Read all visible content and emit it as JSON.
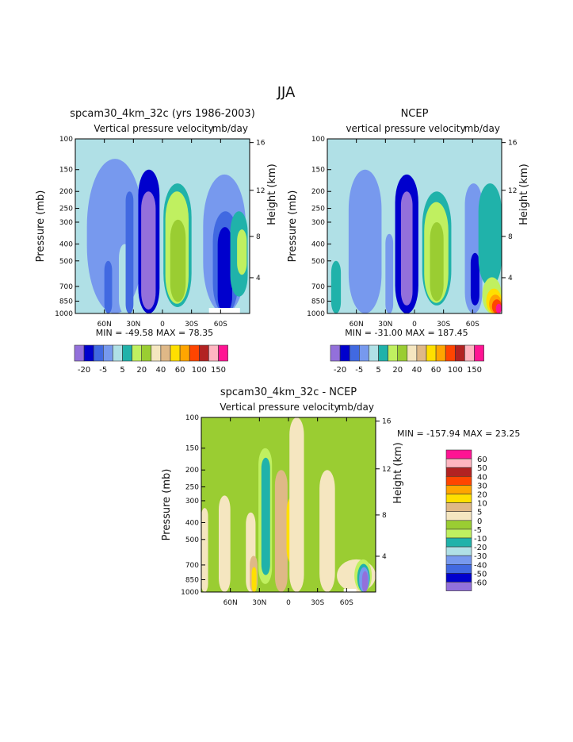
{
  "main_title": "JJA",
  "palette": [
    "#9370db",
    "#0000cd",
    "#4169e1",
    "#7799ee",
    "#b0e0e6",
    "#20b2aa",
    "#c0f060",
    "#9acd32",
    "#f5e6c0",
    "#dfb887",
    "#ffdf00",
    "#ffa500",
    "#ff4500",
    "#b22222",
    "#ffb6c1",
    "#ff1493"
  ],
  "chart_data": [
    {
      "type": "heatmap",
      "title": "spcam30_4km_32c (yrs 1986-2003)",
      "subtitle_left": "Vertical pressure velocity",
      "subtitle_right": "mb/day",
      "ylabel": "Pressure (mb)",
      "ylabel_right": "Height (km)",
      "xlim": [
        90,
        -90
      ],
      "ylim": [
        100,
        1000
      ],
      "x_ticks": [
        {
          "v": 60,
          "label": "60N"
        },
        {
          "v": 30,
          "label": "30N"
        },
        {
          "v": 0,
          "label": "0"
        },
        {
          "v": -30,
          "label": "30S"
        },
        {
          "v": -60,
          "label": "60S"
        }
      ],
      "y_ticks": [
        "100",
        "150",
        "200",
        "250",
        "300",
        "400",
        "500",
        "700",
        "850",
        "1000"
      ],
      "height_ticks": [
        {
          "km": "16",
          "p": 105
        },
        {
          "km": "12",
          "p": 197
        },
        {
          "km": "8",
          "p": 362
        },
        {
          "km": "4",
          "p": 624
        }
      ],
      "stats": "MIN = -49.58   MAX =  78.35",
      "background_level": 4,
      "features": [
        {
          "level": 3,
          "lat": [
            78,
            20
          ],
          "p": [
            130,
            1000
          ]
        },
        {
          "level": 4,
          "lat": [
            45,
            33
          ],
          "p": [
            400,
            1000
          ]
        },
        {
          "level": 2,
          "lat": [
            60,
            52
          ],
          "p": [
            500,
            1000
          ]
        },
        {
          "level": 2,
          "lat": [
            38,
            30
          ],
          "p": [
            200,
            1000
          ]
        },
        {
          "level": 1,
          "lat": [
            25,
            3
          ],
          "p": [
            150,
            1000
          ]
        },
        {
          "level": 0,
          "lat": [
            22,
            7
          ],
          "p": [
            200,
            950
          ]
        },
        {
          "level": 5,
          "lat": [
            -1,
            -30
          ],
          "p": [
            180,
            920
          ]
        },
        {
          "level": 6,
          "lat": [
            -3,
            -27
          ],
          "p": [
            200,
            880
          ]
        },
        {
          "level": 7,
          "lat": [
            -8,
            -24
          ],
          "p": [
            290,
            860
          ]
        },
        {
          "level": 3,
          "lat": [
            -42,
            -86
          ],
          "p": [
            160,
            1000
          ]
        },
        {
          "level": 2,
          "lat": [
            -52,
            -78
          ],
          "p": [
            260,
            1000
          ]
        },
        {
          "level": 1,
          "lat": [
            -57,
            -72
          ],
          "p": [
            320,
            1000
          ]
        },
        {
          "level": 5,
          "lat": [
            -70,
            -88
          ],
          "p": [
            260,
            800
          ]
        },
        {
          "level": 6,
          "lat": [
            -77,
            -87
          ],
          "p": [
            330,
            600
          ]
        }
      ],
      "missing": [
        {
          "lat": [
            -48,
            -80
          ],
          "p": [
            930,
            1000
          ]
        }
      ],
      "colorbar": {
        "orientation": "horizontal",
        "labels": [
          "-20",
          "-5",
          "5",
          "20",
          "40",
          "60",
          "100",
          "150"
        ]
      }
    },
    {
      "type": "heatmap",
      "title": "NCEP",
      "subtitle_left": "vertical pressure velocity",
      "subtitle_right": "mb/day",
      "ylabel": "Pressure (mb)",
      "ylabel_right": "Height (km)",
      "xlim": [
        90,
        -90
      ],
      "ylim": [
        100,
        1000
      ],
      "x_ticks": [
        {
          "v": 60,
          "label": "60N"
        },
        {
          "v": 30,
          "label": "30N"
        },
        {
          "v": 0,
          "label": "0"
        },
        {
          "v": -30,
          "label": "30S"
        },
        {
          "v": -60,
          "label": "60S"
        }
      ],
      "y_ticks": [
        "100",
        "150",
        "200",
        "250",
        "300",
        "400",
        "500",
        "700",
        "850",
        "1000"
      ],
      "height_ticks": [
        {
          "km": "16",
          "p": 105
        },
        {
          "km": "12",
          "p": 197
        },
        {
          "km": "8",
          "p": 362
        },
        {
          "km": "4",
          "p": 624
        }
      ],
      "stats": "MIN = -31.00   MAX = 187.45",
      "background_level": 4,
      "features": [
        {
          "level": 3,
          "lat": [
            68,
            34
          ],
          "p": [
            150,
            1000
          ]
        },
        {
          "level": 5,
          "lat": [
            86,
            76
          ],
          "p": [
            500,
            1000
          ]
        },
        {
          "level": 3,
          "lat": [
            30,
            22
          ],
          "p": [
            350,
            1000
          ]
        },
        {
          "level": 1,
          "lat": [
            20,
            -4
          ],
          "p": [
            160,
            1000
          ]
        },
        {
          "level": 0,
          "lat": [
            14,
            2
          ],
          "p": [
            200,
            900
          ]
        },
        {
          "level": 5,
          "lat": [
            -8,
            -38
          ],
          "p": [
            200,
            900
          ]
        },
        {
          "level": 6,
          "lat": [
            -10,
            -35
          ],
          "p": [
            230,
            870
          ]
        },
        {
          "level": 7,
          "lat": [
            -16,
            -30
          ],
          "p": [
            300,
            850
          ]
        },
        {
          "level": 3,
          "lat": [
            -52,
            -70
          ],
          "p": [
            180,
            1000
          ]
        },
        {
          "level": 1,
          "lat": [
            -58,
            -67
          ],
          "p": [
            450,
            900
          ]
        },
        {
          "level": 5,
          "lat": [
            -66,
            -90
          ],
          "p": [
            180,
            700
          ]
        },
        {
          "level": 6,
          "lat": [
            -70,
            -90
          ],
          "p": [
            620,
            1000
          ]
        },
        {
          "level": 10,
          "lat": [
            -74,
            -90
          ],
          "p": [
            720,
            1000
          ]
        },
        {
          "level": 11,
          "lat": [
            -77,
            -90
          ],
          "p": [
            780,
            1000
          ]
        },
        {
          "level": 12,
          "lat": [
            -80,
            -90
          ],
          "p": [
            830,
            1000
          ]
        },
        {
          "level": 15,
          "lat": [
            -84,
            -90
          ],
          "p": [
            880,
            1000
          ]
        }
      ],
      "missing": [],
      "colorbar": {
        "orientation": "horizontal",
        "labels": [
          "-20",
          "-5",
          "5",
          "20",
          "40",
          "60",
          "100",
          "150"
        ]
      }
    },
    {
      "type": "heatmap",
      "title": "spcam30_4km_32c - NCEP",
      "subtitle_left": "Vertical pressure velocity",
      "subtitle_right": "mb/day",
      "ylabel": "Pressure (mb)",
      "ylabel_right": "Height (km)",
      "xlim": [
        90,
        -90
      ],
      "ylim": [
        100,
        1000
      ],
      "x_ticks": [
        {
          "v": 60,
          "label": "60N"
        },
        {
          "v": 30,
          "label": "30N"
        },
        {
          "v": 0,
          "label": "0"
        },
        {
          "v": -30,
          "label": "30S"
        },
        {
          "v": -60,
          "label": "60S"
        }
      ],
      "y_ticks": [
        "100",
        "150",
        "200",
        "250",
        "300",
        "400",
        "500",
        "700",
        "850",
        "1000"
      ],
      "height_ticks": [
        {
          "km": "16",
          "p": 105
        },
        {
          "km": "12",
          "p": 197
        },
        {
          "km": "8",
          "p": 362
        },
        {
          "km": "4",
          "p": 624
        }
      ],
      "stats": "MIN = -157.94   MAX =  23.25",
      "background_level": 7,
      "features": [
        {
          "level": 8,
          "lat": [
            90,
            83
          ],
          "p": [
            330,
            1000
          ]
        },
        {
          "level": 8,
          "lat": [
            72,
            60
          ],
          "p": [
            280,
            1000
          ]
        },
        {
          "level": 8,
          "lat": [
            44,
            34
          ],
          "p": [
            350,
            1000
          ]
        },
        {
          "level": 9,
          "lat": [
            40,
            32
          ],
          "p": [
            620,
            1000
          ]
        },
        {
          "level": 10,
          "lat": [
            38,
            33
          ],
          "p": [
            720,
            1000
          ]
        },
        {
          "level": 6,
          "lat": [
            31,
            17
          ],
          "p": [
            150,
            900
          ]
        },
        {
          "level": 5,
          "lat": [
            28,
            19
          ],
          "p": [
            170,
            800
          ]
        },
        {
          "level": 9,
          "lat": [
            14,
            1
          ],
          "p": [
            200,
            1000
          ]
        },
        {
          "level": 10,
          "lat": [
            2,
            -12
          ],
          "p": [
            280,
            700
          ]
        },
        {
          "level": 8,
          "lat": [
            -1,
            -16
          ],
          "p": [
            100,
            1000
          ]
        },
        {
          "level": 8,
          "lat": [
            -32,
            -48
          ],
          "p": [
            200,
            1000
          ]
        },
        {
          "level": 8,
          "lat": [
            -50,
            -90
          ],
          "p": [
            650,
            1000
          ]
        },
        {
          "level": 6,
          "lat": [
            -68,
            -86
          ],
          "p": [
            650,
            1000
          ]
        },
        {
          "level": 5,
          "lat": [
            -71,
            -84
          ],
          "p": [
            690,
            1000
          ]
        },
        {
          "level": 3,
          "lat": [
            -73,
            -83
          ],
          "p": [
            720,
            1000
          ]
        },
        {
          "level": 0,
          "lat": [
            -76,
            -82
          ],
          "p": [
            760,
            1000
          ]
        }
      ],
      "missing": [
        {
          "lat": [
            -57,
            -70
          ],
          "p": [
            960,
            1000
          ]
        }
      ],
      "colorbar": {
        "orientation": "vertical",
        "labels": [
          "60",
          "50",
          "40",
          "30",
          "20",
          "10",
          "5",
          "0",
          "-5",
          "-10",
          "-20",
          "-30",
          "-40",
          "-50",
          "-60"
        ]
      }
    }
  ]
}
